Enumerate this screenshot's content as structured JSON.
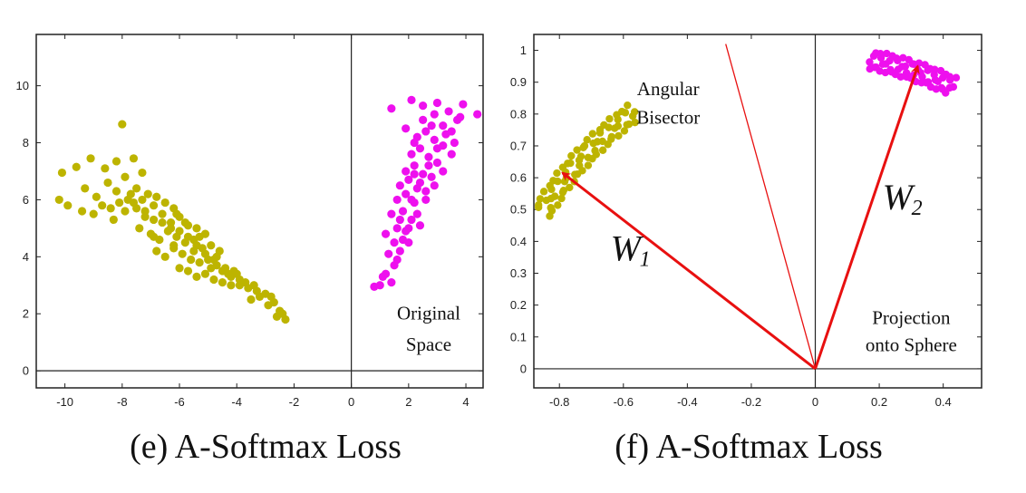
{
  "chart_data": [
    {
      "type": "scatter",
      "caption": "(e) A-Softmax Loss",
      "xlim": [
        -11,
        4.6
      ],
      "ylim": [
        -0.6,
        11.8
      ],
      "xticks": [
        -10,
        -8,
        -6,
        -4,
        -2,
        0,
        2,
        4
      ],
      "yticks": [
        0,
        2,
        4,
        6,
        8,
        10
      ],
      "axis_lines": {
        "x_zero": true,
        "y_zero": true
      },
      "grid": false,
      "annotations": [
        {
          "text": "Original",
          "x": 2.7,
          "y": 1.8
        },
        {
          "text": "Space",
          "x": 2.7,
          "y": 0.7
        }
      ],
      "series": [
        {
          "color": "#bdb400",
          "description": "class 1 features (olive)",
          "points": [
            [
              -8.0,
              8.65
            ],
            [
              -10.1,
              6.95
            ],
            [
              -9.6,
              7.15
            ],
            [
              -9.1,
              7.45
            ],
            [
              -8.6,
              7.1
            ],
            [
              -8.2,
              7.35
            ],
            [
              -7.6,
              7.45
            ],
            [
              -7.3,
              6.95
            ],
            [
              -10.2,
              6.0
            ],
            [
              -9.9,
              5.8
            ],
            [
              -9.3,
              6.4
            ],
            [
              -8.9,
              6.1
            ],
            [
              -8.5,
              6.6
            ],
            [
              -8.2,
              6.3
            ],
            [
              -7.9,
              6.8
            ],
            [
              -7.5,
              6.4
            ],
            [
              -7.1,
              6.2
            ],
            [
              -6.8,
              6.1
            ],
            [
              -6.5,
              5.9
            ],
            [
              -6.2,
              5.7
            ],
            [
              -9.4,
              5.6
            ],
            [
              -9.0,
              5.5
            ],
            [
              -8.7,
              5.8
            ],
            [
              -8.3,
              5.3
            ],
            [
              -7.9,
              5.6
            ],
            [
              -7.6,
              5.9
            ],
            [
              -7.2,
              5.4
            ],
            [
              -6.9,
              5.3
            ],
            [
              -6.6,
              5.5
            ],
            [
              -6.3,
              5.2
            ],
            [
              -6.0,
              5.4
            ],
            [
              -5.7,
              5.1
            ],
            [
              -5.4,
              5.0
            ],
            [
              -5.1,
              4.8
            ],
            [
              -7.4,
              5.0
            ],
            [
              -7.0,
              4.8
            ],
            [
              -6.7,
              4.6
            ],
            [
              -6.4,
              4.9
            ],
            [
              -6.1,
              4.7
            ],
            [
              -5.8,
              4.5
            ],
            [
              -5.5,
              4.6
            ],
            [
              -5.2,
              4.3
            ],
            [
              -4.9,
              4.4
            ],
            [
              -4.6,
              4.2
            ],
            [
              -6.8,
              4.2
            ],
            [
              -6.5,
              4.0
            ],
            [
              -6.2,
              4.3
            ],
            [
              -5.9,
              4.1
            ],
            [
              -5.6,
              3.9
            ],
            [
              -5.3,
              3.8
            ],
            [
              -5.0,
              3.9
            ],
            [
              -4.7,
              3.7
            ],
            [
              -4.4,
              3.6
            ],
            [
              -4.1,
              3.5
            ],
            [
              -6.0,
              3.6
            ],
            [
              -5.7,
              3.5
            ],
            [
              -5.4,
              3.3
            ],
            [
              -5.1,
              3.4
            ],
            [
              -4.8,
              3.2
            ],
            [
              -4.5,
              3.1
            ],
            [
              -4.2,
              3.0
            ],
            [
              -3.9,
              3.0
            ],
            [
              -3.6,
              2.9
            ],
            [
              -3.3,
              2.8
            ],
            [
              -3.0,
              2.7
            ],
            [
              -2.7,
              2.4
            ],
            [
              -2.5,
              2.1
            ],
            [
              -2.3,
              1.8
            ],
            [
              -2.6,
              1.9
            ],
            [
              -2.9,
              2.3
            ],
            [
              -3.2,
              2.6
            ],
            [
              -3.5,
              2.5
            ],
            [
              -7.8,
              6.0
            ],
            [
              -7.5,
              5.7
            ],
            [
              -7.2,
              5.6
            ],
            [
              -6.9,
              5.8
            ],
            [
              -6.6,
              5.2
            ],
            [
              -6.3,
              5.0
            ],
            [
              -6.0,
              4.9
            ],
            [
              -5.7,
              4.7
            ],
            [
              -5.4,
              4.4
            ],
            [
              -5.1,
              4.1
            ],
            [
              -4.8,
              3.9
            ],
            [
              -4.5,
              3.5
            ],
            [
              -4.2,
              3.3
            ],
            [
              -3.9,
              3.2
            ],
            [
              -6.9,
              4.7
            ],
            [
              -6.2,
              4.4
            ],
            [
              -5.5,
              4.2
            ],
            [
              -4.9,
              3.6
            ],
            [
              -4.3,
              3.4
            ],
            [
              -3.7,
              3.1
            ],
            [
              -8.4,
              5.7
            ],
            [
              -8.1,
              5.9
            ],
            [
              -7.7,
              6.2
            ],
            [
              -7.3,
              6.0
            ],
            [
              -6.1,
              5.5
            ],
            [
              -5.8,
              5.2
            ],
            [
              -5.3,
              4.7
            ],
            [
              -4.7,
              4.0
            ],
            [
              -4.0,
              3.4
            ],
            [
              -3.4,
              3.0
            ],
            [
              -2.8,
              2.6
            ],
            [
              -2.4,
              2.0
            ]
          ]
        },
        {
          "color": "#ee10ee",
          "description": "class 2 features (magenta)",
          "points": [
            [
              0.8,
              2.95
            ],
            [
              1.0,
              3.0
            ],
            [
              1.2,
              3.4
            ],
            [
              1.4,
              3.1
            ],
            [
              1.6,
              3.9
            ],
            [
              1.3,
              4.1
            ],
            [
              1.5,
              4.5
            ],
            [
              1.7,
              4.2
            ],
            [
              1.2,
              4.8
            ],
            [
              1.6,
              5.0
            ],
            [
              1.9,
              4.9
            ],
            [
              1.4,
              5.5
            ],
            [
              1.8,
              5.6
            ],
            [
              2.1,
              5.3
            ],
            [
              1.6,
              6.0
            ],
            [
              1.9,
              6.2
            ],
            [
              2.2,
              5.9
            ],
            [
              1.7,
              6.5
            ],
            [
              2.0,
              6.7
            ],
            [
              2.3,
              6.4
            ],
            [
              2.6,
              6.3
            ],
            [
              1.9,
              7.0
            ],
            [
              2.2,
              7.2
            ],
            [
              2.5,
              6.9
            ],
            [
              2.8,
              6.8
            ],
            [
              2.1,
              7.6
            ],
            [
              2.4,
              7.8
            ],
            [
              2.7,
              7.5
            ],
            [
              3.0,
              7.3
            ],
            [
              2.3,
              8.2
            ],
            [
              2.6,
              8.4
            ],
            [
              2.9,
              8.1
            ],
            [
              3.2,
              7.9
            ],
            [
              2.5,
              8.8
            ],
            [
              2.9,
              9.0
            ],
            [
              3.2,
              8.6
            ],
            [
              3.5,
              8.4
            ],
            [
              3.0,
              9.4
            ],
            [
              3.4,
              9.1
            ],
            [
              3.7,
              8.8
            ],
            [
              1.4,
              9.2
            ],
            [
              2.1,
              9.5
            ],
            [
              2.5,
              9.3
            ],
            [
              3.9,
              9.35
            ],
            [
              4.4,
              9.0
            ],
            [
              3.8,
              8.9
            ],
            [
              1.9,
              8.5
            ],
            [
              2.2,
              8.0
            ],
            [
              2.0,
              5.0
            ],
            [
              2.3,
              5.5
            ],
            [
              2.6,
              6.0
            ],
            [
              2.9,
              6.5
            ],
            [
              3.2,
              7.0
            ],
            [
              3.5,
              7.6
            ],
            [
              2.0,
              4.5
            ],
            [
              2.4,
              5.1
            ],
            [
              1.1,
              3.3
            ],
            [
              1.5,
              3.7
            ],
            [
              1.8,
              4.6
            ],
            [
              2.1,
              6.0
            ],
            [
              2.4,
              6.6
            ],
            [
              2.7,
              7.2
            ],
            [
              3.0,
              7.8
            ],
            [
              3.3,
              8.3
            ],
            [
              3.6,
              8.0
            ],
            [
              2.8,
              8.6
            ],
            [
              2.2,
              6.9
            ],
            [
              1.7,
              5.3
            ]
          ]
        }
      ]
    },
    {
      "type": "scatter",
      "caption": "(f) A-Softmax Loss",
      "xlim": [
        -0.88,
        0.52
      ],
      "ylim": [
        -0.06,
        1.05
      ],
      "xticks": [
        -0.8,
        -0.6,
        -0.4,
        -0.2,
        0,
        0.2,
        0.4
      ],
      "yticks": [
        0,
        0.1,
        0.2,
        0.3,
        0.4,
        0.5,
        0.6,
        0.7,
        0.8,
        0.9,
        1
      ],
      "axis_lines": {
        "x_zero": true,
        "y_zero": true
      },
      "grid": false,
      "annotations": [
        {
          "text": "Angular",
          "x": -0.46,
          "y": 0.86
        },
        {
          "text": "Bisector",
          "x": -0.46,
          "y": 0.77
        },
        {
          "text": "Projection",
          "x": 0.3,
          "y": 0.14
        },
        {
          "text": "onto Sphere",
          "x": 0.3,
          "y": 0.055
        }
      ],
      "vectors": [
        {
          "label": "W",
          "subscript": "1",
          "from": [
            0,
            0
          ],
          "to": [
            -0.79,
            0.615
          ],
          "color": "#e81010",
          "label_at": [
            -0.64,
            0.34
          ]
        },
        {
          "label": "W",
          "subscript": "2",
          "from": [
            0,
            0
          ],
          "to": [
            0.32,
            0.95
          ],
          "color": "#e81010",
          "label_at": [
            0.21,
            0.5
          ]
        }
      ],
      "bisector": {
        "from": [
          0,
          0
        ],
        "to": [
          -0.28,
          1.02
        ],
        "color": "#e81010"
      },
      "series": [
        {
          "color": "#bdb400",
          "description": "class 1 projections (olive arc)",
          "angle_range_deg": [
            125,
            150
          ],
          "radius": 1.0,
          "count": 70
        },
        {
          "color": "#ee10ee",
          "description": "class 2 projections (magenta arc)",
          "angle_range_deg": [
            64,
            80
          ],
          "radius": 1.0,
          "count": 60
        }
      ]
    }
  ]
}
